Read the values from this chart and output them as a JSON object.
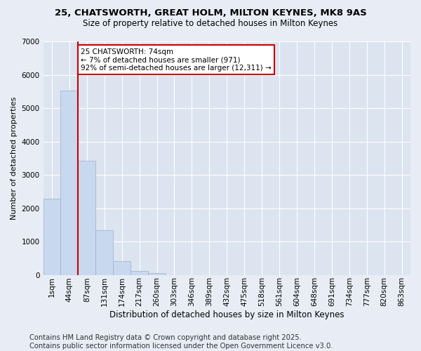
{
  "title": "25, CHATSWORTH, GREAT HOLM, MILTON KEYNES, MK8 9AS",
  "subtitle": "Size of property relative to detached houses in Milton Keynes",
  "xlabel": "Distribution of detached houses by size in Milton Keynes",
  "ylabel": "Number of detached properties",
  "bar_color": "#c8d8ee",
  "bar_edge_color": "#9ab0cc",
  "bg_color": "#e8edf5",
  "plot_bg_color": "#dce4f0",
  "grid_color": "#ffffff",
  "vline_color": "#cc0000",
  "vline_bar_index": 1.5,
  "annotation_text": "25 CHATSWORTH: 74sqm\n← 7% of detached houses are smaller (971)\n92% of semi-detached houses are larger (12,311) →",
  "annotation_box_color": "#cc0000",
  "categories": [
    "1sqm",
    "44sqm",
    "87sqm",
    "131sqm",
    "174sqm",
    "217sqm",
    "260sqm",
    "303sqm",
    "346sqm",
    "389sqm",
    "432sqm",
    "475sqm",
    "518sqm",
    "561sqm",
    "604sqm",
    "648sqm",
    "691sqm",
    "734sqm",
    "777sqm",
    "820sqm",
    "863sqm"
  ],
  "values": [
    2280,
    5520,
    3430,
    1330,
    410,
    120,
    55,
    0,
    0,
    0,
    0,
    0,
    0,
    0,
    0,
    0,
    0,
    0,
    0,
    0,
    0
  ],
  "ylim": [
    0,
    7000
  ],
  "yticks": [
    0,
    1000,
    2000,
    3000,
    4000,
    5000,
    6000,
    7000
  ],
  "footer": "Contains HM Land Registry data © Crown copyright and database right 2025.\nContains public sector information licensed under the Open Government Licence v3.0.",
  "footer_fontsize": 7.2,
  "title_fontsize": 9.5,
  "subtitle_fontsize": 8.5,
  "xlabel_fontsize": 8.5,
  "ylabel_fontsize": 8.0,
  "tick_fontsize": 7.5,
  "ann_fontsize": 7.5
}
